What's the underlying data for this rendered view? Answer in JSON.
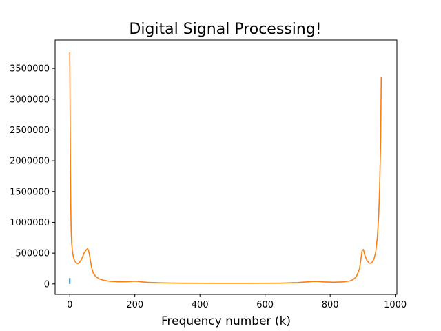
{
  "chart_data": {
    "type": "line",
    "title": "Digital Signal Processing!",
    "xlabel": "Frequency number (k)",
    "ylabel": "",
    "xlim": [
      -45,
      1005
    ],
    "ylim": [
      -170000,
      3960000
    ],
    "xticks": [
      0,
      200,
      400,
      600,
      800,
      1000
    ],
    "yticks": [
      0,
      500000,
      1000000,
      1500000,
      2000000,
      2500000,
      3000000,
      3500000
    ],
    "grid": false,
    "legend": "none",
    "series": [
      {
        "color": "#1f77b4",
        "x": [
          0,
          0
        ],
        "y": [
          0,
          95000
        ]
      },
      {
        "color": "#ff7f0e",
        "x": [
          0,
          1,
          2,
          3,
          4,
          5,
          6,
          8,
          10,
          12,
          15,
          20,
          25,
          30,
          35,
          40,
          45,
          50,
          54,
          57,
          60,
          63,
          67,
          72,
          80,
          90,
          100,
          120,
          150,
          180,
          200,
          210,
          220,
          240,
          270,
          300,
          350,
          400,
          450,
          500,
          550,
          600,
          650,
          700,
          730,
          750,
          760,
          780,
          810,
          840,
          860,
          870,
          880,
          890,
          895,
          898,
          902,
          907,
          913,
          920,
          925,
          930,
          935,
          940,
          945,
          949,
          952,
          955,
          957
        ],
        "y": [
          3760000,
          2800000,
          1900000,
          1300000,
          950000,
          760000,
          650000,
          540000,
          470000,
          420000,
          375000,
          340000,
          330000,
          350000,
          390000,
          450000,
          510000,
          550000,
          570000,
          555000,
          490000,
          390000,
          270000,
          180000,
          120000,
          85000,
          65000,
          45000,
          35000,
          38000,
          45000,
          42000,
          33000,
          25000,
          20000,
          16000,
          13000,
          12000,
          11500,
          11000,
          11500,
          12000,
          14000,
          22000,
          33000,
          42000,
          40000,
          33000,
          28000,
          33000,
          48000,
          70000,
          115000,
          240000,
          420000,
          540000,
          560000,
          460000,
          380000,
          340000,
          335000,
          360000,
          410000,
          520000,
          760000,
          1100000,
          1550000,
          2300000,
          3360000
        ]
      }
    ]
  }
}
